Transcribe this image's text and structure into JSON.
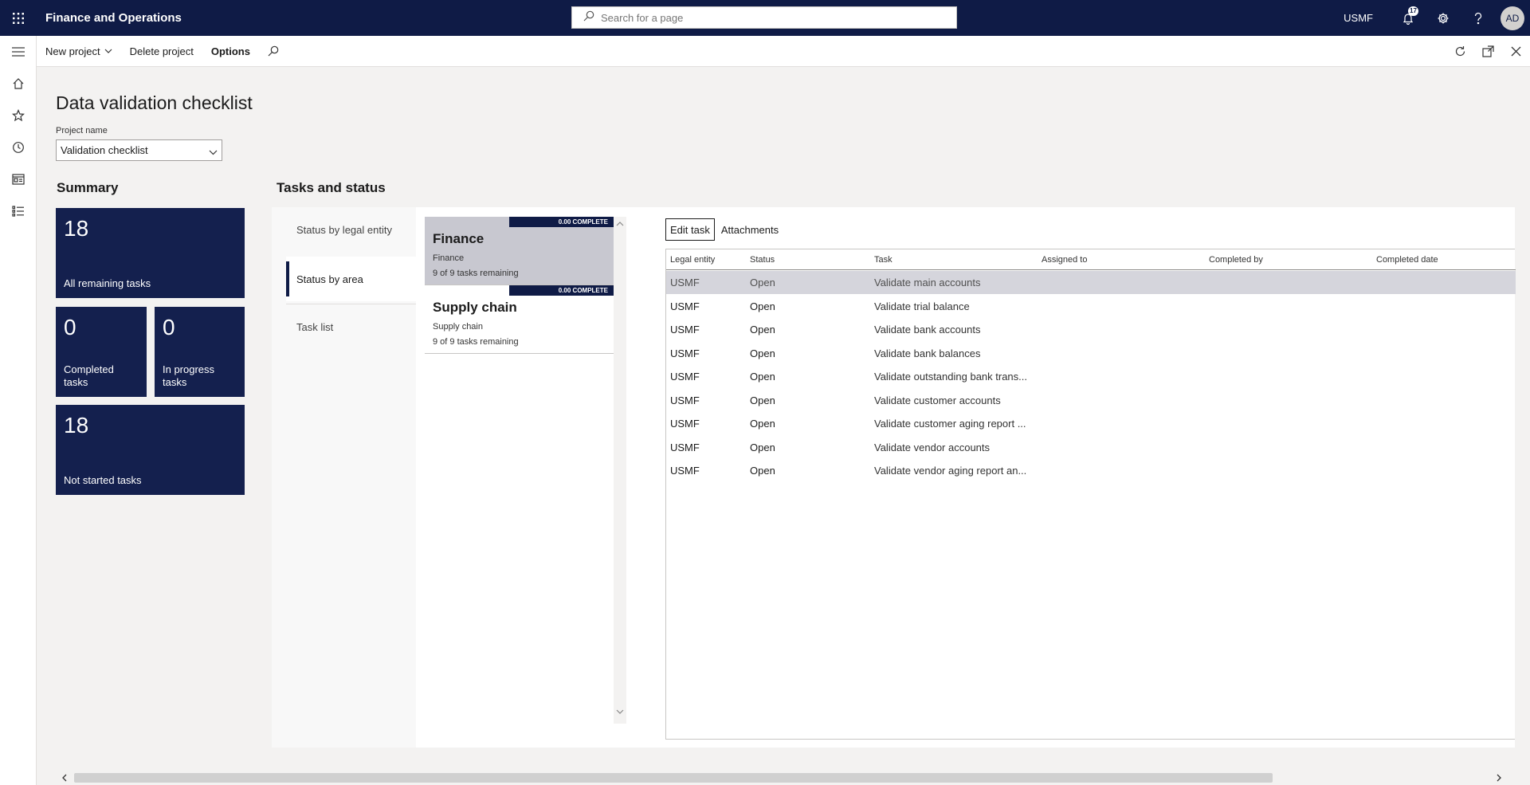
{
  "app": {
    "title": "Finance and Operations",
    "company": "USMF",
    "notification_count": "17",
    "user_initials": "AD"
  },
  "search": {
    "placeholder": "Search for a page"
  },
  "actionpane": {
    "new_project": "New project",
    "delete_project": "Delete project",
    "options": "Options"
  },
  "page": {
    "title": "Data validation checklist",
    "project_label": "Project name",
    "project_value": "Validation checklist"
  },
  "summary": {
    "heading": "Summary",
    "all_remaining": {
      "count": "18",
      "label": "All remaining tasks"
    },
    "completed": {
      "count": "0",
      "label_1": "Completed",
      "label_2": "tasks"
    },
    "in_progress": {
      "count": "0",
      "label_1": "In progress",
      "label_2": "tasks"
    },
    "not_started": {
      "count": "18",
      "label": "Not started tasks"
    }
  },
  "tasks_status": {
    "heading": "Tasks and status",
    "tabs": [
      "Status by legal entity",
      "Status by area",
      "Task list"
    ],
    "active_tab": 1,
    "areas": [
      {
        "badge": "0.00 COMPLETE",
        "name": "Finance",
        "sub": "Finance",
        "remaining": "9 of 9 tasks remaining",
        "selected": true
      },
      {
        "badge": "0.00 COMPLETE",
        "name": "Supply chain",
        "sub": "Supply chain",
        "remaining": "9 of 9 tasks remaining",
        "selected": false
      }
    ]
  },
  "grid": {
    "toolbar": {
      "edit_task": "Edit task",
      "attachments": "Attachments"
    },
    "columns": [
      "Legal entity",
      "Status",
      "Task",
      "Assigned to",
      "Completed by",
      "Completed date"
    ],
    "rows": [
      {
        "entity": "USMF",
        "status": "Open",
        "task": "Validate main accounts"
      },
      {
        "entity": "USMF",
        "status": "Open",
        "task": "Validate trial balance"
      },
      {
        "entity": "USMF",
        "status": "Open",
        "task": "Validate bank accounts"
      },
      {
        "entity": "USMF",
        "status": "Open",
        "task": "Validate bank balances"
      },
      {
        "entity": "USMF",
        "status": "Open",
        "task": "Validate outstanding bank trans..."
      },
      {
        "entity": "USMF",
        "status": "Open",
        "task": "Validate customer accounts"
      },
      {
        "entity": "USMF",
        "status": "Open",
        "task": "Validate customer aging report ..."
      },
      {
        "entity": "USMF",
        "status": "Open",
        "task": "Validate vendor accounts"
      },
      {
        "entity": "USMF",
        "status": "Open",
        "task": "Validate vendor aging report an..."
      }
    ],
    "selected_row": 0
  },
  "icons": {
    "waffle": "app-launcher-icon",
    "search": "search-icon",
    "bell": "notification-bell-icon",
    "gear": "settings-gear-icon",
    "help": "help-icon",
    "hamburger": "hamburger-menu-icon",
    "home": "home-icon",
    "star": "favorites-star-icon",
    "clock": "recent-clock-icon",
    "workspace": "workspaces-icon",
    "modules": "modules-list-icon",
    "refresh": "refresh-icon",
    "popout": "open-new-window-icon",
    "close": "close-icon"
  },
  "colors": {
    "topbar": "#0f1b46",
    "tile": "#14204e",
    "selected_row": "#d5d5dc",
    "selected_card": "#c8c8d0"
  }
}
